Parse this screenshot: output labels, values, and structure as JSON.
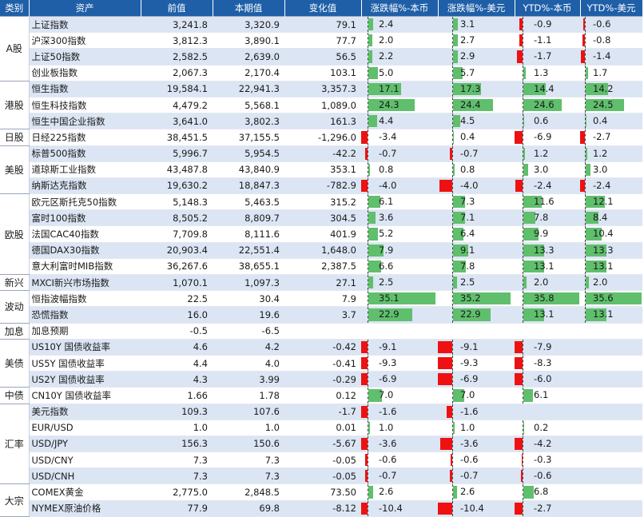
{
  "headers": [
    "类别",
    "资产",
    "前值",
    "本期值",
    "变化值",
    "涨跌幅%-本币",
    "涨跌幅%-美元",
    "YTD%-本币",
    "YTD%-美元"
  ],
  "bar_colors": {
    "positive": "#5fbf6c",
    "negative": "#ee1111",
    "header": "#1f5fa8",
    "stripe": "#dbe5f4"
  },
  "groups": [
    {
      "category": "A股",
      "rows": [
        {
          "asset": "上证指数",
          "prev": "3,241.8",
          "curr": "3,320.9",
          "change": "79.1",
          "pct_local": 2.4,
          "pct_usd": 3.1,
          "ytd_local": -0.9,
          "ytd_usd": -0.6
        },
        {
          "asset": "沪深300指数",
          "prev": "3,812.3",
          "curr": "3,890.1",
          "change": "77.7",
          "pct_local": 2.0,
          "pct_usd": 2.7,
          "ytd_local": -1.1,
          "ytd_usd": -0.8
        },
        {
          "asset": "上证50指数",
          "prev": "2,582.5",
          "curr": "2,639.0",
          "change": "56.5",
          "pct_local": 2.2,
          "pct_usd": 2.9,
          "ytd_local": -1.7,
          "ytd_usd": -1.4
        },
        {
          "asset": "创业板指数",
          "prev": "2,067.3",
          "curr": "2,170.4",
          "change": "103.1",
          "pct_local": 5.0,
          "pct_usd": 5.7,
          "ytd_local": 1.3,
          "ytd_usd": 1.7
        }
      ]
    },
    {
      "category": "港股",
      "rows": [
        {
          "asset": "恒生指数",
          "prev": "19,584.1",
          "curr": "22,941.3",
          "change": "3,357.3",
          "pct_local": 17.1,
          "pct_usd": 17.3,
          "ytd_local": 14.4,
          "ytd_usd": 14.2
        },
        {
          "asset": "恒生科技指数",
          "prev": "4,479.2",
          "curr": "5,568.1",
          "change": "1,089.0",
          "pct_local": 24.3,
          "pct_usd": 24.4,
          "ytd_local": 24.6,
          "ytd_usd": 24.5
        },
        {
          "asset": "恒生中国企业指数",
          "prev": "3,641.0",
          "curr": "3,802.3",
          "change": "161.3",
          "pct_local": 4.4,
          "pct_usd": 4.5,
          "ytd_local": 0.6,
          "ytd_usd": 0.4
        }
      ]
    },
    {
      "category": "日股",
      "rows": [
        {
          "asset": "日经225指数",
          "prev": "38,451.5",
          "curr": "37,155.5",
          "change": "-1,296.0",
          "pct_local": -3.4,
          "pct_usd": 0.4,
          "ytd_local": -6.9,
          "ytd_usd": -2.7
        }
      ]
    },
    {
      "category": "美股",
      "rows": [
        {
          "asset": "标普500指数",
          "prev": "5,996.7",
          "curr": "5,954.5",
          "change": "-42.2",
          "pct_local": -0.7,
          "pct_usd": -0.7,
          "ytd_local": 1.2,
          "ytd_usd": 1.2
        },
        {
          "asset": "道琼斯工业指数",
          "prev": "43,487.8",
          "curr": "43,840.9",
          "change": "353.1",
          "pct_local": 0.8,
          "pct_usd": 0.8,
          "ytd_local": 3.0,
          "ytd_usd": 3.0
        },
        {
          "asset": "纳斯达克指数",
          "prev": "19,630.2",
          "curr": "18,847.3",
          "change": "-782.9",
          "pct_local": -4.0,
          "pct_usd": -4.0,
          "ytd_local": -2.4,
          "ytd_usd": -2.4
        }
      ]
    },
    {
      "category": "欧股",
      "rows": [
        {
          "asset": "欧元区斯托克50指数",
          "prev": "5,148.3",
          "curr": "5,463.5",
          "change": "315.2",
          "pct_local": 6.1,
          "pct_usd": 7.3,
          "ytd_local": 11.6,
          "ytd_usd": 12.1
        },
        {
          "asset": "富时100指数",
          "prev": "8,505.2",
          "curr": "8,809.7",
          "change": "304.5",
          "pct_local": 3.6,
          "pct_usd": 7.1,
          "ytd_local": 7.8,
          "ytd_usd": 8.4
        },
        {
          "asset": "法国CAC40指数",
          "prev": "7,709.8",
          "curr": "8,111.6",
          "change": "401.9",
          "pct_local": 5.2,
          "pct_usd": 6.4,
          "ytd_local": 9.9,
          "ytd_usd": 10.4
        },
        {
          "asset": "德国DAX30指数",
          "prev": "20,903.4",
          "curr": "22,551.4",
          "change": "1,648.0",
          "pct_local": 7.9,
          "pct_usd": 9.1,
          "ytd_local": 13.3,
          "ytd_usd": 13.3
        },
        {
          "asset": "意大利富时MIB指数",
          "prev": "36,267.6",
          "curr": "38,655.1",
          "change": "2,387.5",
          "pct_local": 6.6,
          "pct_usd": 7.8,
          "ytd_local": 13.1,
          "ytd_usd": 13.1
        }
      ]
    },
    {
      "category": "新兴",
      "rows": [
        {
          "asset": "MXCI新兴市场指数",
          "prev": "1,070.1",
          "curr": "1,097.3",
          "change": "27.1",
          "pct_local": 2.5,
          "pct_usd": 2.5,
          "ytd_local": 2.0,
          "ytd_usd": 2.0
        }
      ]
    },
    {
      "category": "波动",
      "rows": [
        {
          "asset": "恒指波幅指数",
          "prev": "22.5",
          "curr": "30.4",
          "change": "7.9",
          "pct_local": 35.1,
          "pct_usd": 35.2,
          "ytd_local": 35.8,
          "ytd_usd": 35.6
        },
        {
          "asset": "恐慌指数",
          "prev": "16.0",
          "curr": "19.6",
          "change": "3.7",
          "pct_local": 22.9,
          "pct_usd": 22.9,
          "ytd_local": 13.1,
          "ytd_usd": 13.1
        }
      ]
    },
    {
      "category": "加息",
      "rows": [
        {
          "asset": "加息预期",
          "prev": "-0.5",
          "curr": "-6.5",
          "change": "",
          "pct_local": null,
          "pct_usd": null,
          "ytd_local": null,
          "ytd_usd": null
        }
      ]
    },
    {
      "category": "美债",
      "rows": [
        {
          "asset": "US10Y 国债收益率",
          "prev": "4.6",
          "curr": "4.2",
          "change": "-0.42",
          "pct_local": -9.1,
          "pct_usd": -9.1,
          "ytd_local": -7.9,
          "ytd_usd": null
        },
        {
          "asset": "US5Y 国债收益率",
          "prev": "4.4",
          "curr": "4.0",
          "change": "-0.41",
          "pct_local": -9.3,
          "pct_usd": -9.3,
          "ytd_local": -8.3,
          "ytd_usd": null
        },
        {
          "asset": "US2Y 国债收益率",
          "prev": "4.3",
          "curr": "3.99",
          "change": "-0.29",
          "pct_local": -6.9,
          "pct_usd": -6.9,
          "ytd_local": -6.0,
          "ytd_usd": null
        }
      ]
    },
    {
      "category": "中债",
      "rows": [
        {
          "asset": "CN10Y 国债收益率",
          "prev": "1.66",
          "curr": "1.78",
          "change": "0.12",
          "pct_local": 7.0,
          "pct_usd": 7.0,
          "ytd_local": 6.1,
          "ytd_usd": null
        }
      ]
    },
    {
      "category": "汇率",
      "rows": [
        {
          "asset": "美元指数",
          "prev": "109.3",
          "curr": "107.6",
          "change": "-1.7",
          "pct_local": -1.6,
          "pct_usd": -1.6,
          "ytd_local": null,
          "ytd_usd": null
        },
        {
          "asset": "EUR/USD",
          "prev": "1.0",
          "curr": "1.0",
          "change": "0.01",
          "pct_local": 1.0,
          "pct_usd": 1.0,
          "ytd_local": 0.2,
          "ytd_usd": null
        },
        {
          "asset": "USD/JPY",
          "prev": "156.3",
          "curr": "150.6",
          "change": "-5.67",
          "pct_local": -3.6,
          "pct_usd": -3.6,
          "ytd_local": -4.2,
          "ytd_usd": null
        },
        {
          "asset": "USD/CNY",
          "prev": "7.3",
          "curr": "7.3",
          "change": "-0.05",
          "pct_local": -0.6,
          "pct_usd": -0.6,
          "ytd_local": -0.3,
          "ytd_usd": null
        },
        {
          "asset": "USD/CNH",
          "prev": "7.3",
          "curr": "7.3",
          "change": "-0.05",
          "pct_local": -0.7,
          "pct_usd": -0.7,
          "ytd_local": -0.6,
          "ytd_usd": null
        }
      ]
    },
    {
      "category": "大宗",
      "rows": [
        {
          "asset": "COMEX黄金",
          "prev": "2,775.0",
          "curr": "2,848.5",
          "change": "73.50",
          "pct_local": 2.6,
          "pct_usd": 2.6,
          "ytd_local": 6.8,
          "ytd_usd": null
        },
        {
          "asset": "NYMEX原油价格",
          "prev": "77.9",
          "curr": "69.8",
          "change": "-8.12",
          "pct_local": -10.4,
          "pct_usd": -10.4,
          "ytd_local": -2.7,
          "ytd_usd": null
        }
      ]
    }
  ]
}
